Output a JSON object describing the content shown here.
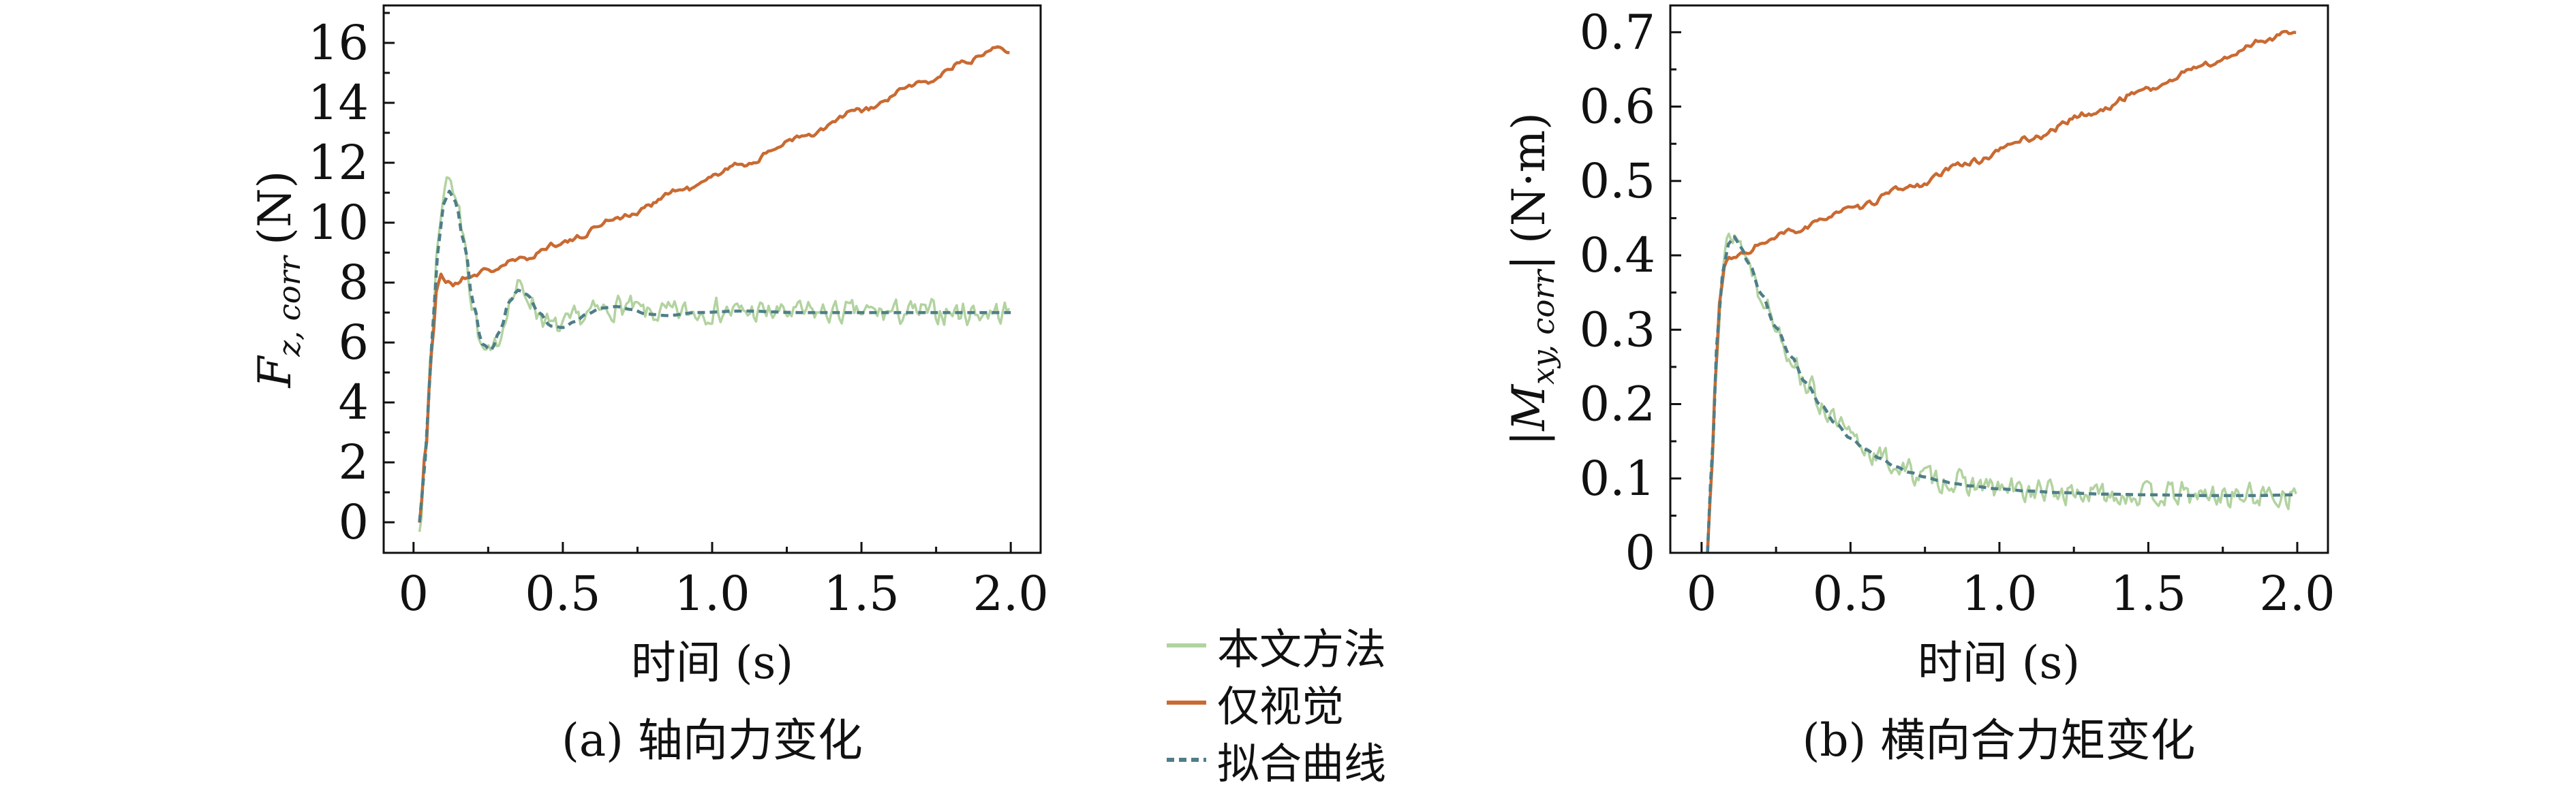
{
  "figure": {
    "background": "#ffffff",
    "axis_color": "#111111"
  },
  "legend": {
    "items": [
      {
        "label": "本文方法",
        "color": "#b2d3a0",
        "dash": false
      },
      {
        "label": "仅视觉",
        "color": "#c96a32",
        "dash": false
      },
      {
        "label": "拟合曲线",
        "color": "#4e7e88",
        "dash": true
      }
    ]
  },
  "chart_data": [
    {
      "type": "line",
      "caption": "(a) 轴向力变化",
      "xlabel": "时间 (s)",
      "ylabel": {
        "bar_open": "",
        "symbol": "F",
        "sub": "z, corr",
        "bar_close": "",
        "unit": "(N)"
      },
      "xlim": [
        -0.1,
        2.1
      ],
      "ylim": [
        -1.02,
        17.25
      ],
      "xticks": {
        "values": [
          0,
          0.5,
          1.0,
          1.5,
          2.0
        ],
        "labels": [
          "0",
          "0.5",
          "1.0",
          "1.5",
          "2.0"
        ],
        "minor": [
          0.25,
          0.75,
          1.25,
          1.75
        ]
      },
      "yticks": {
        "values": [
          0,
          2,
          4,
          6,
          8,
          10,
          12,
          14,
          16
        ],
        "labels": [
          "0",
          "2",
          "4",
          "6",
          "8",
          "10",
          "12",
          "14",
          "16"
        ],
        "minor": [
          1,
          3,
          5,
          7,
          9,
          11,
          13,
          15,
          17
        ]
      },
      "series": [
        {
          "name": "本文方法",
          "color": "#b2d3a0",
          "width": 3.5,
          "dash": null,
          "noise": 0.5,
          "step": 0.007,
          "seed": 7,
          "points": [
            [
              0.02,
              0
            ],
            [
              0.04,
              2.3
            ],
            [
              0.06,
              6.0
            ],
            [
              0.08,
              9.2
            ],
            [
              0.1,
              11.0
            ],
            [
              0.12,
              11.7
            ],
            [
              0.14,
              10.9
            ],
            [
              0.17,
              9.4
            ],
            [
              0.2,
              7.2
            ],
            [
              0.23,
              5.7
            ],
            [
              0.26,
              5.5
            ],
            [
              0.29,
              6.3
            ],
            [
              0.32,
              7.4
            ],
            [
              0.35,
              7.8
            ],
            [
              0.38,
              7.6
            ],
            [
              0.42,
              7.0
            ],
            [
              0.46,
              6.5
            ],
            [
              0.5,
              6.5
            ],
            [
              0.55,
              6.8
            ],
            [
              0.6,
              7.0
            ],
            [
              0.7,
              7.2
            ],
            [
              0.8,
              6.95
            ],
            [
              0.9,
              7.0
            ],
            [
              1.0,
              7.05
            ],
            [
              1.2,
              7.0
            ],
            [
              1.4,
              7.0
            ],
            [
              1.6,
              7.0
            ],
            [
              1.8,
              7.0
            ],
            [
              2.0,
              7.0
            ]
          ]
        },
        {
          "name": "仅视觉",
          "color": "#c96a32",
          "width": 4.5,
          "dash": null,
          "noise": 0.12,
          "step": 0.008,
          "seed": 21,
          "points": [
            [
              0.02,
              0
            ],
            [
              0.04,
              2.4
            ],
            [
              0.06,
              5.6
            ],
            [
              0.08,
              7.9
            ],
            [
              0.09,
              8.25
            ],
            [
              0.11,
              8.05
            ],
            [
              0.14,
              7.95
            ],
            [
              0.18,
              8.2
            ],
            [
              0.25,
              8.4
            ],
            [
              0.35,
              8.75
            ],
            [
              0.5,
              9.35
            ],
            [
              0.7,
              10.2
            ],
            [
              0.9,
              11.1
            ],
            [
              1.1,
              11.95
            ],
            [
              1.3,
              12.85
            ],
            [
              1.5,
              13.75
            ],
            [
              1.7,
              14.65
            ],
            [
              1.85,
              15.35
            ],
            [
              1.95,
              15.9
            ],
            [
              2.0,
              15.75
            ]
          ]
        },
        {
          "name": "拟合曲线",
          "color": "#4e7e88",
          "width": 4.5,
          "dash": [
            11,
            7
          ],
          "noise": 0,
          "step": 0.01,
          "seed": 1,
          "points": [
            [
              0.02,
              0
            ],
            [
              0.04,
              2.2
            ],
            [
              0.06,
              5.8
            ],
            [
              0.08,
              8.9
            ],
            [
              0.1,
              10.6
            ],
            [
              0.12,
              11.05
            ],
            [
              0.14,
              10.7
            ],
            [
              0.17,
              9.3
            ],
            [
              0.2,
              7.3
            ],
            [
              0.23,
              5.95
            ],
            [
              0.26,
              5.75
            ],
            [
              0.29,
              6.4
            ],
            [
              0.32,
              7.35
            ],
            [
              0.35,
              7.75
            ],
            [
              0.38,
              7.6
            ],
            [
              0.42,
              7.0
            ],
            [
              0.46,
              6.55
            ],
            [
              0.5,
              6.5
            ],
            [
              0.54,
              6.7
            ],
            [
              0.58,
              6.95
            ],
            [
              0.63,
              7.15
            ],
            [
              0.68,
              7.2
            ],
            [
              0.73,
              7.1
            ],
            [
              0.78,
              6.95
            ],
            [
              0.85,
              6.9
            ],
            [
              0.95,
              7.0
            ],
            [
              1.1,
              7.05
            ],
            [
              1.3,
              7.0
            ],
            [
              1.6,
              7.0
            ],
            [
              2.0,
              7.0
            ]
          ]
        }
      ]
    },
    {
      "type": "line",
      "caption": "(b) 横向合力矩变化",
      "xlabel": "时间 (s)",
      "ylabel": {
        "bar_open": "|",
        "symbol": "M",
        "sub": "xy, corr",
        "bar_close": "|",
        "unit": "(N·m)"
      },
      "xlim": [
        -0.105,
        2.103
      ],
      "ylim": [
        0,
        0.736
      ],
      "xticks": {
        "values": [
          0,
          0.5,
          1.0,
          1.5,
          2.0
        ],
        "labels": [
          "0",
          "0.5",
          "1.0",
          "1.5",
          "2.0"
        ],
        "minor": [
          0.25,
          0.75,
          1.25,
          1.75
        ]
      },
      "yticks": {
        "values": [
          0,
          0.1,
          0.2,
          0.3,
          0.4,
          0.5,
          0.6,
          0.7
        ],
        "labels": [
          "0",
          "0.1",
          "0.2",
          "0.3",
          "0.4",
          "0.5",
          "0.6",
          "0.7"
        ],
        "minor": [
          0.05,
          0.15,
          0.25,
          0.35,
          0.45,
          0.55,
          0.65
        ]
      },
      "series": [
        {
          "name": "本文方法",
          "color": "#b2d3a0",
          "width": 3.5,
          "dash": null,
          "noise": 0.02,
          "step": 0.0065,
          "seed": 13,
          "points": [
            [
              0.02,
              0
            ],
            [
              0.035,
              0.13
            ],
            [
              0.05,
              0.28
            ],
            [
              0.07,
              0.38
            ],
            [
              0.09,
              0.42
            ],
            [
              0.11,
              0.43
            ],
            [
              0.13,
              0.415
            ],
            [
              0.16,
              0.39
            ],
            [
              0.2,
              0.35
            ],
            [
              0.25,
              0.305
            ],
            [
              0.3,
              0.265
            ],
            [
              0.35,
              0.23
            ],
            [
              0.4,
              0.2
            ],
            [
              0.45,
              0.175
            ],
            [
              0.5,
              0.155
            ],
            [
              0.55,
              0.14
            ],
            [
              0.6,
              0.128
            ],
            [
              0.65,
              0.117
            ],
            [
              0.7,
              0.109
            ],
            [
              0.75,
              0.103
            ],
            [
              0.8,
              0.098
            ],
            [
              0.85,
              0.094
            ],
            [
              0.9,
              0.091
            ],
            [
              1.0,
              0.086
            ],
            [
              1.1,
              0.083
            ],
            [
              1.2,
              0.081
            ],
            [
              1.35,
              0.079
            ],
            [
              1.5,
              0.078
            ],
            [
              1.7,
              0.077
            ],
            [
              1.85,
              0.077
            ],
            [
              2.0,
              0.078
            ]
          ]
        },
        {
          "name": "仅视觉",
          "color": "#c96a32",
          "width": 4.5,
          "dash": null,
          "noise": 0.005,
          "step": 0.008,
          "seed": 33,
          "points": [
            [
              0.02,
              0
            ],
            [
              0.035,
              0.12
            ],
            [
              0.05,
              0.27
            ],
            [
              0.065,
              0.355
            ],
            [
              0.08,
              0.39
            ],
            [
              0.1,
              0.395
            ],
            [
              0.13,
              0.4
            ],
            [
              0.2,
              0.415
            ],
            [
              0.3,
              0.432
            ],
            [
              0.5,
              0.462
            ],
            [
              0.7,
              0.492
            ],
            [
              0.9,
              0.525
            ],
            [
              1.1,
              0.557
            ],
            [
              1.3,
              0.59
            ],
            [
              1.5,
              0.624
            ],
            [
              1.7,
              0.657
            ],
            [
              1.9,
              0.69
            ],
            [
              1.97,
              0.7
            ],
            [
              2.0,
              0.698
            ]
          ]
        },
        {
          "name": "拟合曲线",
          "color": "#4e7e88",
          "width": 4.5,
          "dash": [
            11,
            7
          ],
          "noise": 0,
          "step": 0.01,
          "seed": 1,
          "points": [
            [
              0.02,
              0
            ],
            [
              0.035,
              0.125
            ],
            [
              0.05,
              0.275
            ],
            [
              0.07,
              0.375
            ],
            [
              0.09,
              0.415
            ],
            [
              0.11,
              0.425
            ],
            [
              0.13,
              0.412
            ],
            [
              0.16,
              0.388
            ],
            [
              0.2,
              0.348
            ],
            [
              0.25,
              0.303
            ],
            [
              0.3,
              0.264
            ],
            [
              0.35,
              0.229
            ],
            [
              0.4,
              0.199
            ],
            [
              0.45,
              0.174
            ],
            [
              0.5,
              0.154
            ],
            [
              0.55,
              0.139
            ],
            [
              0.6,
              0.127
            ],
            [
              0.65,
              0.116
            ],
            [
              0.7,
              0.108
            ],
            [
              0.75,
              0.102
            ],
            [
              0.8,
              0.097
            ],
            [
              0.85,
              0.093
            ],
            [
              0.9,
              0.09
            ],
            [
              1.0,
              0.086
            ],
            [
              1.1,
              0.083
            ],
            [
              1.2,
              0.081
            ],
            [
              1.35,
              0.079
            ],
            [
              1.5,
              0.078
            ],
            [
              1.7,
              0.077
            ],
            [
              1.85,
              0.077
            ],
            [
              2.0,
              0.078
            ]
          ]
        }
      ]
    }
  ]
}
